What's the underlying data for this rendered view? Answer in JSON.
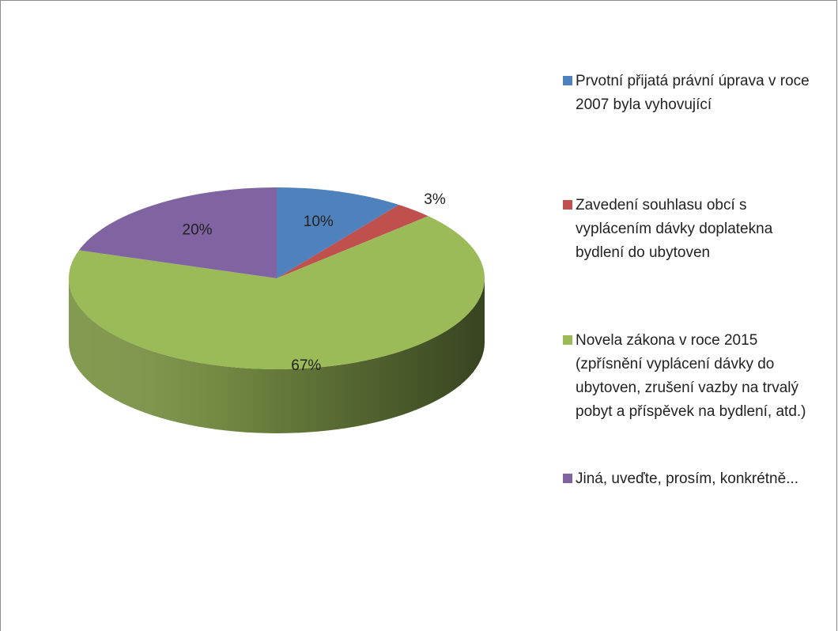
{
  "chart_data": {
    "type": "pie3d",
    "categories": [
      "Prvotní přijatá právní úprava v roce 2007 byla vyhovující",
      "Zavedení souhlasu obcí s vyplácením dávky doplatekna bydlení do ubytoven",
      "Novela zákona v roce 2015 (zpřísnění vyplácení dávky do ubytoven, zrušení vazby na trvalý pobyt a příspěvek na bydlení, atd.)",
      "Jiná, uveďte, prosím, konkrétně..."
    ],
    "values": [
      10,
      3,
      67,
      20
    ],
    "value_labels": [
      "10%",
      "3%",
      "67%",
      "20%"
    ],
    "colors": [
      "#4f81bd",
      "#c0504d",
      "#9bbb59",
      "#8064a2"
    ],
    "legend": "right"
  }
}
